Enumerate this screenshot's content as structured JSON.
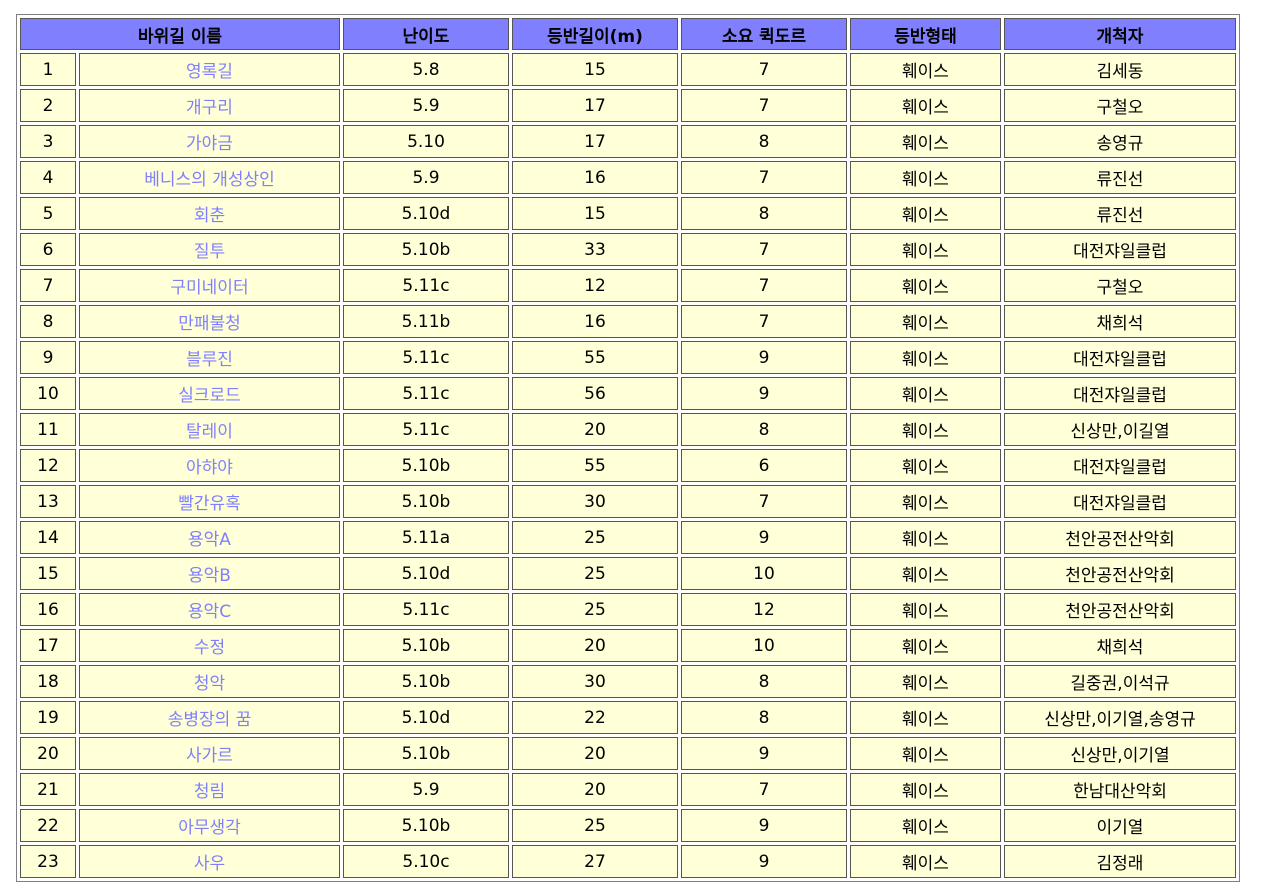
{
  "colors": {
    "header_bg": "#8080ff",
    "cell_bg": "#ffffd8",
    "link": "#8080ff"
  },
  "table": {
    "headers": [
      "바위길 이름",
      "난이도",
      "등반길이(m)",
      "소요 퀵도르",
      "등반형태",
      "개척자"
    ],
    "rows": [
      {
        "no": "1",
        "name": "영록길",
        "grade": "5.8",
        "length": "15",
        "quickdraws": "7",
        "type": "훼이스",
        "setter": "김세동"
      },
      {
        "no": "2",
        "name": "개구리",
        "grade": "5.9",
        "length": "17",
        "quickdraws": "7",
        "type": "훼이스",
        "setter": "구철오"
      },
      {
        "no": "3",
        "name": "가야금",
        "grade": "5.10",
        "length": "17",
        "quickdraws": "8",
        "type": "훼이스",
        "setter": "송영규"
      },
      {
        "no": "4",
        "name": "베니스의 개성상인",
        "grade": "5.9",
        "length": "16",
        "quickdraws": "7",
        "type": "훼이스",
        "setter": "류진선"
      },
      {
        "no": "5",
        "name": "회춘",
        "grade": "5.10d",
        "length": "15",
        "quickdraws": "8",
        "type": "훼이스",
        "setter": "류진선"
      },
      {
        "no": "6",
        "name": "질투",
        "grade": "5.10b",
        "length": "33",
        "quickdraws": "7",
        "type": "훼이스",
        "setter": "대전쟈일클럽"
      },
      {
        "no": "7",
        "name": "구미네이터",
        "grade": "5.11c",
        "length": "12",
        "quickdraws": "7",
        "type": "훼이스",
        "setter": "구철오"
      },
      {
        "no": "8",
        "name": "만패불청",
        "grade": "5.11b",
        "length": "16",
        "quickdraws": "7",
        "type": "훼이스",
        "setter": "채희석"
      },
      {
        "no": "9",
        "name": "블루진",
        "grade": "5.11c",
        "length": "55",
        "quickdraws": "9",
        "type": "훼이스",
        "setter": "대전쟈일클럽"
      },
      {
        "no": "10",
        "name": "실크로드",
        "grade": "5.11c",
        "length": "56",
        "quickdraws": "9",
        "type": "훼이스",
        "setter": "대전쟈일클럽"
      },
      {
        "no": "11",
        "name": "탈레이",
        "grade": "5.11c",
        "length": "20",
        "quickdraws": "8",
        "type": "훼이스",
        "setter": "신상만,이길열"
      },
      {
        "no": "12",
        "name": "아햐야",
        "grade": "5.10b",
        "length": "55",
        "quickdraws": "6",
        "type": "훼이스",
        "setter": "대전쟈일클럽"
      },
      {
        "no": "13",
        "name": "빨간유혹",
        "grade": "5.10b",
        "length": "30",
        "quickdraws": "7",
        "type": "훼이스",
        "setter": "대전쟈일클럽"
      },
      {
        "no": "14",
        "name": "용악A",
        "grade": "5.11a",
        "length": "25",
        "quickdraws": "9",
        "type": "훼이스",
        "setter": "천안공전산악회"
      },
      {
        "no": "15",
        "name": "용악B",
        "grade": "5.10d",
        "length": "25",
        "quickdraws": "10",
        "type": "훼이스",
        "setter": "천안공전산악회"
      },
      {
        "no": "16",
        "name": "용악C",
        "grade": "5.11c",
        "length": "25",
        "quickdraws": "12",
        "type": "훼이스",
        "setter": "천안공전산악회"
      },
      {
        "no": "17",
        "name": "수정",
        "grade": "5.10b",
        "length": "20",
        "quickdraws": "10",
        "type": "훼이스",
        "setter": "채희석"
      },
      {
        "no": "18",
        "name": "청악",
        "grade": "5.10b",
        "length": "30",
        "quickdraws": "8",
        "type": "훼이스",
        "setter": "길중권,이석규"
      },
      {
        "no": "19",
        "name": "송병장의 꿈",
        "grade": "5.10d",
        "length": "22",
        "quickdraws": "8",
        "type": "훼이스",
        "setter": "신상만,이기열,송영규"
      },
      {
        "no": "20",
        "name": "사가르",
        "grade": "5.10b",
        "length": "20",
        "quickdraws": "9",
        "type": "훼이스",
        "setter": "신상만,이기열"
      },
      {
        "no": "21",
        "name": "청림",
        "grade": "5.9",
        "length": "20",
        "quickdraws": "7",
        "type": "훼이스",
        "setter": "한남대산악회"
      },
      {
        "no": "22",
        "name": "아무생각",
        "grade": "5.10b",
        "length": "25",
        "quickdraws": "9",
        "type": "훼이스",
        "setter": "이기열"
      },
      {
        "no": "23",
        "name": "사우",
        "grade": "5.10c",
        "length": "27",
        "quickdraws": "9",
        "type": "훼이스",
        "setter": "김정래"
      }
    ]
  }
}
